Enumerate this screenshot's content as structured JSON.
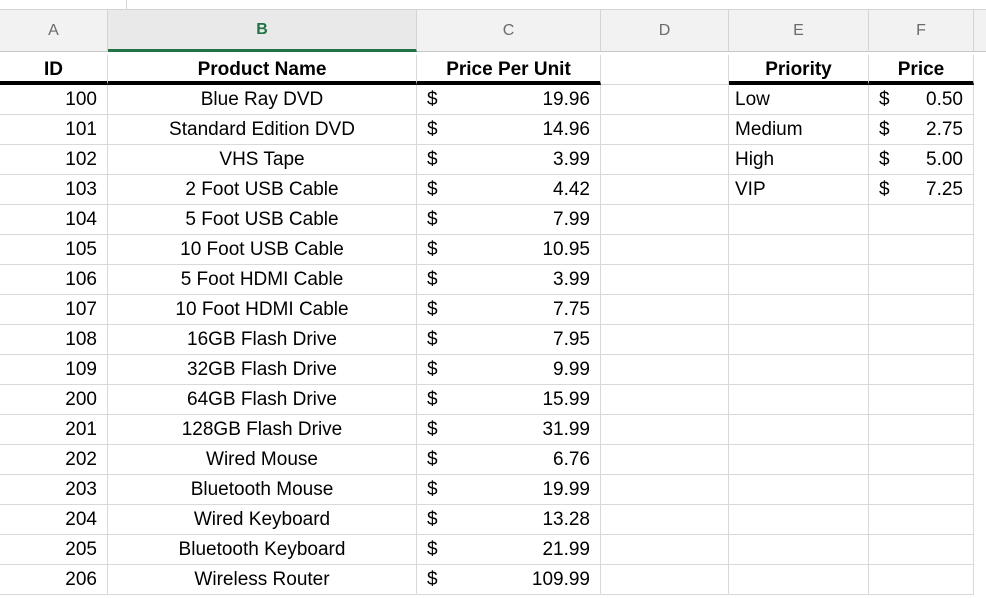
{
  "columns": [
    "A",
    "B",
    "C",
    "D",
    "E",
    "F"
  ],
  "selected_column": "B",
  "headers": {
    "id": "ID",
    "product_name": "Product Name",
    "price_per_unit": "Price Per Unit",
    "priority": "Priority",
    "price": "Price"
  },
  "currency_symbol": "$",
  "products": [
    {
      "id": "100",
      "name": "Blue Ray DVD",
      "price": "19.96"
    },
    {
      "id": "101",
      "name": "Standard Edition DVD",
      "price": "14.96"
    },
    {
      "id": "102",
      "name": "VHS Tape",
      "price": "3.99"
    },
    {
      "id": "103",
      "name": "2 Foot USB Cable",
      "price": "4.42"
    },
    {
      "id": "104",
      "name": "5 Foot USB Cable",
      "price": "7.99"
    },
    {
      "id": "105",
      "name": "10 Foot USB Cable",
      "price": "10.95"
    },
    {
      "id": "106",
      "name": "5 Foot HDMI Cable",
      "price": "3.99"
    },
    {
      "id": "107",
      "name": "10 Foot HDMI Cable",
      "price": "7.75"
    },
    {
      "id": "108",
      "name": "16GB Flash Drive",
      "price": "7.95"
    },
    {
      "id": "109",
      "name": "32GB Flash Drive",
      "price": "9.99"
    },
    {
      "id": "200",
      "name": "64GB Flash Drive",
      "price": "15.99"
    },
    {
      "id": "201",
      "name": "128GB Flash Drive",
      "price": "31.99"
    },
    {
      "id": "202",
      "name": "Wired Mouse",
      "price": "6.76"
    },
    {
      "id": "203",
      "name": "Bluetooth Mouse",
      "price": "19.99"
    },
    {
      "id": "204",
      "name": "Wired Keyboard",
      "price": "13.28"
    },
    {
      "id": "205",
      "name": "Bluetooth Keyboard",
      "price": "21.99"
    },
    {
      "id": "206",
      "name": "Wireless Router",
      "price": "109.99"
    }
  ],
  "priorities": [
    {
      "level": "Low",
      "price": "0.50"
    },
    {
      "level": "Medium",
      "price": "2.75"
    },
    {
      "level": "High",
      "price": "5.00"
    },
    {
      "level": "VIP",
      "price": "7.25"
    }
  ],
  "colors": {
    "selected_header": "#217346",
    "grid": "#d9d9d9",
    "header_bg": "#f2f2f2"
  }
}
